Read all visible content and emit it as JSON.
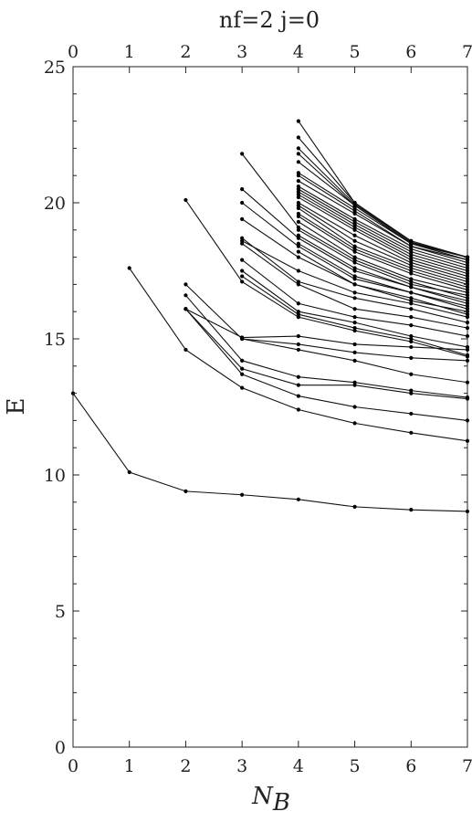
{
  "chart_data": {
    "type": "line",
    "title": "nf=2   j=0",
    "xlabel_main": "N",
    "xlabel_sub": "B",
    "ylabel": "E",
    "xlim": [
      0,
      7
    ],
    "ylim": [
      0,
      25
    ],
    "xticks": [
      "0",
      "1",
      "2",
      "3",
      "4",
      "5",
      "6",
      "7"
    ],
    "yticks": [
      "0",
      "5",
      "10",
      "15",
      "20",
      "25"
    ],
    "grid": false,
    "series": [
      {
        "points": [
          [
            0,
            13.0
          ],
          [
            1,
            10.1
          ],
          [
            2,
            9.4
          ],
          [
            3,
            9.27
          ],
          [
            4,
            9.1
          ],
          [
            5,
            8.83
          ],
          [
            6,
            8.72
          ],
          [
            7,
            8.66
          ]
        ]
      },
      {
        "points": [
          [
            1,
            17.6
          ],
          [
            2,
            14.6
          ],
          [
            3,
            13.2
          ],
          [
            4,
            12.4
          ],
          [
            5,
            11.9
          ],
          [
            6,
            11.55
          ],
          [
            7,
            11.25
          ]
        ]
      },
      {
        "points": [
          [
            2,
            16.1
          ],
          [
            3,
            13.7
          ],
          [
            4,
            12.9
          ],
          [
            5,
            12.5
          ],
          [
            6,
            12.25
          ],
          [
            7,
            12.0
          ]
        ]
      },
      {
        "points": [
          [
            2,
            16.1
          ],
          [
            3,
            13.9
          ],
          [
            4,
            13.3
          ],
          [
            5,
            13.3
          ],
          [
            6,
            13.0
          ],
          [
            7,
            12.8
          ]
        ]
      },
      {
        "points": [
          [
            2,
            16.6
          ],
          [
            3,
            14.2
          ],
          [
            4,
            13.6
          ],
          [
            5,
            13.4
          ],
          [
            6,
            13.1
          ],
          [
            7,
            12.85
          ]
        ]
      },
      {
        "points": [
          [
            2,
            17.0
          ],
          [
            3,
            15.0
          ],
          [
            4,
            14.6
          ],
          [
            5,
            14.2
          ],
          [
            6,
            13.7
          ],
          [
            7,
            13.4
          ]
        ]
      },
      {
        "points": [
          [
            2,
            16.1
          ],
          [
            3,
            15.05
          ],
          [
            4,
            15.1
          ],
          [
            5,
            14.8
          ],
          [
            6,
            14.7
          ],
          [
            7,
            14.6
          ]
        ]
      },
      {
        "points": [
          [
            2,
            20.1
          ],
          [
            3,
            17.1
          ],
          [
            4,
            15.8
          ],
          [
            5,
            15.3
          ],
          [
            6,
            14.9
          ],
          [
            7,
            14.35
          ]
        ]
      },
      {
        "points": [
          [
            3,
            15.0
          ],
          [
            4,
            14.8
          ],
          [
            5,
            14.5
          ],
          [
            6,
            14.3
          ],
          [
            7,
            14.2
          ]
        ]
      },
      {
        "points": [
          [
            3,
            17.3
          ],
          [
            4,
            15.9
          ],
          [
            5,
            15.4
          ],
          [
            6,
            15.0
          ],
          [
            7,
            14.4
          ]
        ]
      },
      {
        "points": [
          [
            3,
            17.5
          ],
          [
            4,
            16.0
          ],
          [
            5,
            15.6
          ],
          [
            6,
            15.1
          ],
          [
            7,
            14.7
          ]
        ]
      },
      {
        "points": [
          [
            3,
            17.9
          ],
          [
            4,
            16.3
          ],
          [
            5,
            15.8
          ],
          [
            6,
            15.5
          ],
          [
            7,
            15.1
          ]
        ]
      },
      {
        "points": [
          [
            3,
            18.5
          ],
          [
            4,
            17.0
          ],
          [
            5,
            16.1
          ],
          [
            6,
            15.8
          ],
          [
            7,
            15.4
          ]
        ]
      },
      {
        "points": [
          [
            3,
            18.7
          ],
          [
            4,
            17.1
          ],
          [
            5,
            16.5
          ],
          [
            6,
            16.1
          ],
          [
            7,
            15.6
          ]
        ]
      },
      {
        "points": [
          [
            3,
            18.6
          ],
          [
            4,
            17.5
          ],
          [
            5,
            16.7
          ],
          [
            6,
            16.3
          ],
          [
            7,
            15.8
          ]
        ]
      },
      {
        "points": [
          [
            3,
            19.4
          ],
          [
            4,
            18.0
          ],
          [
            5,
            17.0
          ],
          [
            6,
            16.5
          ],
          [
            7,
            15.9
          ]
        ]
      },
      {
        "points": [
          [
            3,
            20.0
          ],
          [
            4,
            18.4
          ],
          [
            5,
            17.2
          ],
          [
            6,
            16.7
          ],
          [
            7,
            16.1
          ]
        ]
      },
      {
        "points": [
          [
            3,
            20.5
          ],
          [
            4,
            18.7
          ],
          [
            5,
            17.5
          ],
          [
            6,
            16.9
          ],
          [
            7,
            16.3
          ]
        ]
      },
      {
        "points": [
          [
            3,
            21.8
          ],
          [
            4,
            19.1
          ],
          [
            5,
            17.9
          ],
          [
            6,
            17.1
          ],
          [
            7,
            16.5
          ]
        ]
      },
      {
        "points": [
          [
            4,
            18.2
          ],
          [
            5,
            17.0
          ],
          [
            6,
            16.4
          ],
          [
            7,
            16.0
          ]
        ]
      },
      {
        "points": [
          [
            4,
            18.5
          ],
          [
            5,
            17.3
          ],
          [
            6,
            16.7
          ],
          [
            7,
            16.2
          ]
        ]
      },
      {
        "points": [
          [
            4,
            18.8
          ],
          [
            5,
            17.6
          ],
          [
            6,
            16.9
          ],
          [
            7,
            16.4
          ]
        ]
      },
      {
        "points": [
          [
            4,
            19.0
          ],
          [
            5,
            17.8
          ],
          [
            6,
            17.0
          ],
          [
            7,
            16.6
          ]
        ]
      },
      {
        "points": [
          [
            4,
            19.3
          ],
          [
            5,
            18.0
          ],
          [
            6,
            17.2
          ],
          [
            7,
            16.7
          ]
        ]
      },
      {
        "points": [
          [
            4,
            19.5
          ],
          [
            5,
            18.2
          ],
          [
            6,
            17.4
          ],
          [
            7,
            16.8
          ]
        ]
      },
      {
        "points": [
          [
            4,
            19.6
          ],
          [
            5,
            18.3
          ],
          [
            6,
            17.5
          ],
          [
            7,
            16.9
          ]
        ]
      },
      {
        "points": [
          [
            4,
            19.8
          ],
          [
            5,
            18.4
          ],
          [
            6,
            17.6
          ],
          [
            7,
            17.0
          ]
        ]
      },
      {
        "points": [
          [
            4,
            19.9
          ],
          [
            5,
            18.6
          ],
          [
            6,
            17.7
          ],
          [
            7,
            17.1
          ]
        ]
      },
      {
        "points": [
          [
            4,
            20.0
          ],
          [
            5,
            18.8
          ],
          [
            6,
            17.8
          ],
          [
            7,
            17.2
          ]
        ]
      },
      {
        "points": [
          [
            4,
            20.2
          ],
          [
            5,
            19.0
          ],
          [
            6,
            17.9
          ],
          [
            7,
            17.3
          ]
        ]
      },
      {
        "points": [
          [
            4,
            20.3
          ],
          [
            5,
            19.1
          ],
          [
            6,
            18.0
          ],
          [
            7,
            17.4
          ]
        ]
      },
      {
        "points": [
          [
            4,
            20.4
          ],
          [
            5,
            19.2
          ],
          [
            6,
            18.1
          ],
          [
            7,
            17.5
          ]
        ]
      },
      {
        "points": [
          [
            4,
            20.5
          ],
          [
            5,
            19.3
          ],
          [
            6,
            18.2
          ],
          [
            7,
            17.6
          ]
        ]
      },
      {
        "points": [
          [
            4,
            20.6
          ],
          [
            5,
            19.4
          ],
          [
            6,
            18.3
          ],
          [
            7,
            17.7
          ]
        ]
      },
      {
        "points": [
          [
            4,
            20.8
          ],
          [
            5,
            19.6
          ],
          [
            6,
            18.4
          ],
          [
            7,
            17.8
          ]
        ]
      },
      {
        "points": [
          [
            4,
            21.0
          ],
          [
            5,
            19.7
          ],
          [
            6,
            18.4
          ],
          [
            7,
            17.9
          ]
        ]
      },
      {
        "points": [
          [
            4,
            21.1
          ],
          [
            5,
            19.8
          ],
          [
            6,
            18.5
          ],
          [
            7,
            17.9
          ]
        ]
      },
      {
        "points": [
          [
            4,
            21.5
          ],
          [
            5,
            19.9
          ],
          [
            6,
            18.5
          ],
          [
            7,
            18.0
          ]
        ]
      },
      {
        "points": [
          [
            4,
            21.8
          ],
          [
            5,
            19.9
          ],
          [
            6,
            18.5
          ],
          [
            7,
            18.0
          ]
        ]
      },
      {
        "points": [
          [
            4,
            22.0
          ],
          [
            5,
            19.95
          ],
          [
            6,
            18.55
          ],
          [
            7,
            18.0
          ]
        ]
      },
      {
        "points": [
          [
            4,
            22.4
          ],
          [
            5,
            20.0
          ],
          [
            6,
            18.55
          ],
          [
            7,
            18.0
          ]
        ]
      },
      {
        "points": [
          [
            4,
            23.0
          ],
          [
            5,
            20.0
          ],
          [
            6,
            18.6
          ],
          [
            7,
            18.0
          ]
        ]
      }
    ]
  }
}
